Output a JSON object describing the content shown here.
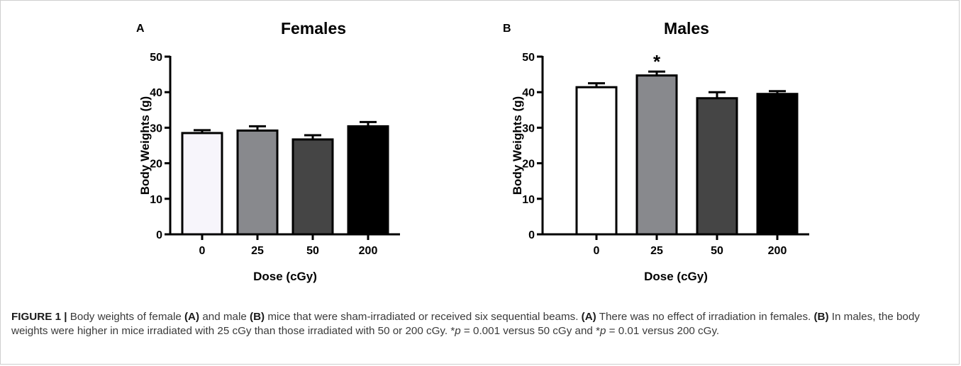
{
  "figure": {
    "label": "FIGURE 1",
    "separator": " | ",
    "caption_segments": [
      {
        "t": "Body weights of female ",
        "s": "n"
      },
      {
        "t": "(A)",
        "s": "b"
      },
      {
        "t": " and male ",
        "s": "n"
      },
      {
        "t": "(B)",
        "s": "b"
      },
      {
        "t": " mice that were sham-irradiated or received six sequential beams. ",
        "s": "n"
      },
      {
        "t": "(A)",
        "s": "b"
      },
      {
        "t": " There was no effect of irradiation in females. ",
        "s": "n"
      },
      {
        "t": "(B)",
        "s": "b"
      },
      {
        "t": " In males, the body weights were higher in mice irradiated with 25 cGy than those irradiated with 50 or 200 cGy. *",
        "s": "n"
      },
      {
        "t": "p",
        "s": "i"
      },
      {
        "t": " = 0.001 versus 50 cGy and *",
        "s": "n"
      },
      {
        "t": "p",
        "s": "i"
      },
      {
        "t": " = 0.01 versus 200 cGy.",
        "s": "n"
      }
    ]
  },
  "chart_data": [
    {
      "panel": "A",
      "type": "bar",
      "title": "Females",
      "xlabel": "Dose (cGy)",
      "ylabel": "Body Weights (g)",
      "categories": [
        "0",
        "25",
        "50",
        "200"
      ],
      "values": [
        28.5,
        29.2,
        26.7,
        30.4
      ],
      "errors": [
        0.8,
        1.2,
        1.2,
        1.2
      ],
      "annotations": [
        "",
        "",
        "",
        ""
      ],
      "ylim": [
        0,
        50
      ],
      "yticks": [
        "0",
        "10",
        "20",
        "30",
        "40",
        "50"
      ],
      "bar_colors": [
        "#f7f5fb",
        "#88898d",
        "#454545",
        "#000000"
      ],
      "grid": false,
      "legend": "none"
    },
    {
      "panel": "B",
      "type": "bar",
      "title": "Males",
      "xlabel": "Dose (cGy)",
      "ylabel": "Body Weights (g)",
      "categories": [
        "0",
        "25",
        "50",
        "200"
      ],
      "values": [
        41.4,
        44.7,
        38.3,
        39.5
      ],
      "errors": [
        1.1,
        1.1,
        1.7,
        0.8
      ],
      "annotations": [
        "",
        "*",
        "",
        ""
      ],
      "ylim": [
        0,
        50
      ],
      "yticks": [
        "0",
        "10",
        "20",
        "30",
        "40",
        "50"
      ],
      "bar_colors": [
        "#ffffff",
        "#88898d",
        "#454545",
        "#000000"
      ],
      "grid": false,
      "legend": "none"
    }
  ]
}
